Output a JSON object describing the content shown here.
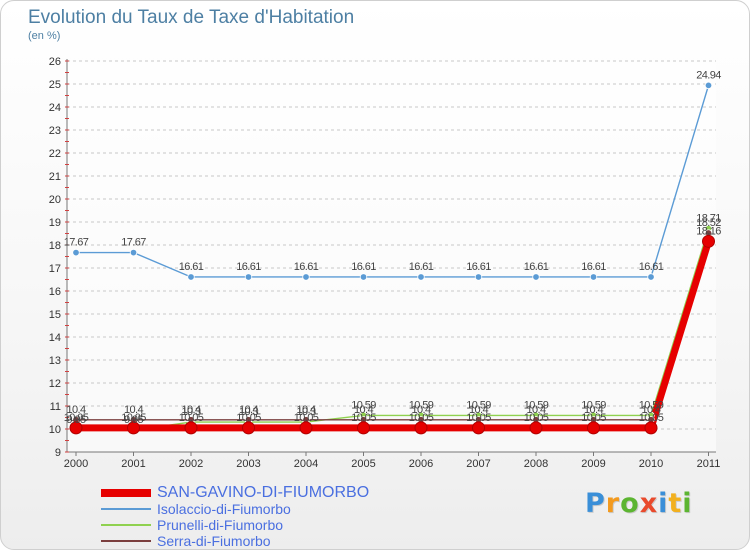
{
  "header": {
    "title": "Evolution du Taux de Taxe d'Habitation",
    "subtitle": "(en %)"
  },
  "logo": {
    "text": "Proxiti",
    "colors": [
      "#3a8fd8",
      "#f39a1e",
      "#5cb531",
      "#e94a2c",
      "#3a8fd8",
      "#f2b01e",
      "#5cb531"
    ]
  },
  "chart_data": {
    "type": "line",
    "title": "Evolution du Taux de Taxe d'Habitation",
    "ylabel": "(en %)",
    "xlabel": "",
    "x": [
      "2000",
      "2001",
      "2002",
      "2003",
      "2004",
      "2005",
      "2006",
      "2007",
      "2008",
      "2009",
      "2010",
      "2011"
    ],
    "ylim": [
      9,
      26
    ],
    "yticks": [
      9,
      10,
      11,
      12,
      13,
      14,
      15,
      16,
      17,
      18,
      19,
      20,
      21,
      22,
      23,
      24,
      25,
      26
    ],
    "grid": "horizontal dashed",
    "legend_position": "bottom-left",
    "series": [
      {
        "name": "Isolaccio-di-Fiumorbo",
        "color": "#5b9bd5",
        "values": [
          17.67,
          17.67,
          16.61,
          16.61,
          16.61,
          16.61,
          16.61,
          16.61,
          16.61,
          16.61,
          16.61,
          24.94
        ],
        "labels": [
          "17.67",
          "17.67",
          "16.61",
          "16.61",
          "16.61",
          "16.61",
          "16.61",
          "16.61",
          "16.61",
          "16.61",
          "16.61",
          "24.94"
        ]
      },
      {
        "name": "Prunelli-di-Fiumorbo",
        "color": "#8fd14f",
        "values": [
          9.95,
          9.95,
          10.3,
          10.3,
          10.3,
          10.59,
          10.59,
          10.59,
          10.59,
          10.59,
          10.59,
          18.71
        ],
        "labels": [
          "9.95",
          "9.95",
          "10.3",
          "10.3",
          "10.3",
          "10.59",
          "10.59",
          "10.59",
          "10.59",
          "10.59",
          "10.59",
          "18.71"
        ]
      },
      {
        "name": "Serra-di-Fiumorbo",
        "color": "#7b3f3f",
        "values": [
          10.4,
          10.4,
          10.4,
          10.4,
          10.4,
          10.4,
          10.4,
          10.4,
          10.4,
          10.4,
          10.4,
          18.52
        ],
        "labels": [
          "10.4",
          "10.4",
          "10.4",
          "10.4",
          "10.4",
          "10.4",
          "10.4",
          "10.4",
          "10.4",
          "10.4",
          "10.4",
          "18.52"
        ]
      },
      {
        "name": "SAN-GAVINO-DI-FIUMORBO",
        "color": "#e60000",
        "emphasis": true,
        "values": [
          10.05,
          10.05,
          10.05,
          10.05,
          10.05,
          10.05,
          10.05,
          10.05,
          10.05,
          10.05,
          10.05,
          18.16
        ],
        "labels": [
          "10.05",
          "10.05",
          "10.05",
          "10.05",
          "10.05",
          "10.05",
          "10.05",
          "10.05",
          "10.05",
          "10.05",
          "10.05",
          "18.16"
        ]
      }
    ]
  },
  "legend": [
    {
      "label": "SAN-GAVINO-DI-FIUMORBO",
      "color": "#e60000",
      "emphasis": true
    },
    {
      "label": "Isolaccio-di-Fiumorbo",
      "color": "#5b9bd5"
    },
    {
      "label": "Prunelli-di-Fiumorbo",
      "color": "#8fd14f"
    },
    {
      "label": "Serra-di-Fiumorbo",
      "color": "#7b3f3f"
    }
  ]
}
